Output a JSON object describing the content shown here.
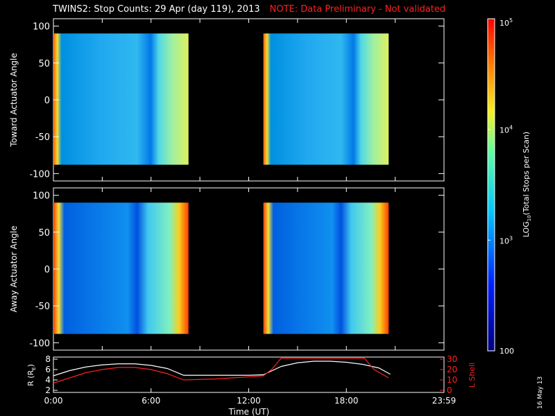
{
  "header": {
    "title": "TWINS2: Stop Counts: 29 Apr (day 119), 2013",
    "note": "NOTE: Data Preliminary - Not validated",
    "date_stamp": "16 May 13"
  },
  "colors": {
    "background": "#000000",
    "note": "#ff2020",
    "radius_line": "#ffffff",
    "lshell_line": "#ff2020"
  },
  "chart_data": [
    {
      "type": "heatmap",
      "panel": "toward",
      "ylabel": "Toward Actuator Angle",
      "yticks": [
        "100",
        "50",
        "0",
        "-50",
        "-100"
      ],
      "ylim": [
        -110,
        110
      ],
      "xlim": [
        0,
        24
      ],
      "data_blocks_hours": [
        [
          0.0,
          8.3
        ],
        [
          12.9,
          20.6
        ]
      ],
      "angle_range": [
        -88,
        90
      ]
    },
    {
      "type": "heatmap",
      "panel": "away",
      "ylabel": "Away Actuator Angle",
      "yticks": [
        "100",
        "50",
        "0",
        "-50",
        "-100"
      ],
      "ylim": [
        -110,
        110
      ],
      "xlim": [
        0,
        24
      ],
      "data_blocks_hours": [
        [
          0.0,
          8.3
        ],
        [
          12.9,
          20.6
        ]
      ],
      "angle_range": [
        -88,
        90
      ]
    },
    {
      "type": "line",
      "panel": "orbit",
      "ylabel": "R (R",
      "ylabel_sub": "E",
      "ylabel_end": ")",
      "y2label": "L Shell",
      "yticks": [
        "8",
        "6",
        "4",
        "2"
      ],
      "y2ticks": [
        "30",
        "20",
        "10",
        "0"
      ],
      "ylim": [
        2,
        8
      ],
      "y2lim": [
        0,
        30
      ],
      "xlabel": "Time (UT)",
      "xticks": [
        "0:00",
        "6:00",
        "12:00",
        "18:00",
        "23:59"
      ],
      "xlim": [
        0,
        24
      ],
      "series": [
        {
          "axis": "left",
          "x": [
            0,
            1,
            2,
            3,
            4,
            5,
            6,
            7,
            8,
            9,
            10,
            11,
            12,
            12.9,
            14,
            15,
            16,
            17,
            18,
            19,
            20,
            20.7
          ],
          "y": [
            4.8,
            5.8,
            6.5,
            6.9,
            7.1,
            7.1,
            6.8,
            6.2,
            4.9,
            4.9,
            4.9,
            4.9,
            4.9,
            5.0,
            6.6,
            7.3,
            7.6,
            7.6,
            7.4,
            7.0,
            6.3,
            5.1
          ]
        },
        {
          "axis": "right",
          "x": [
            0,
            1,
            2,
            3,
            4,
            5,
            6,
            7,
            8,
            9,
            10,
            11,
            12,
            12.9,
            13.4,
            14.0,
            19.1,
            19.7,
            20.6
          ],
          "y": [
            7,
            12,
            17,
            20,
            22,
            22,
            20,
            16,
            10,
            10.5,
            11,
            12,
            13,
            14,
            20,
            31,
            31,
            20,
            12
          ]
        }
      ]
    },
    {
      "type": "colorbar",
      "scale": "log",
      "range": [
        100,
        100000
      ],
      "label": "LOG",
      "label_sub": "10",
      "label_end": "(Total Stops per Scan)",
      "ticks": [
        {
          "base": "10",
          "exp": "5",
          "value": 100000
        },
        {
          "base": "10",
          "exp": "4",
          "value": 10000
        },
        {
          "base": "10",
          "exp": "3",
          "value": 1000
        },
        {
          "text": "100",
          "value": 100
        }
      ]
    }
  ]
}
